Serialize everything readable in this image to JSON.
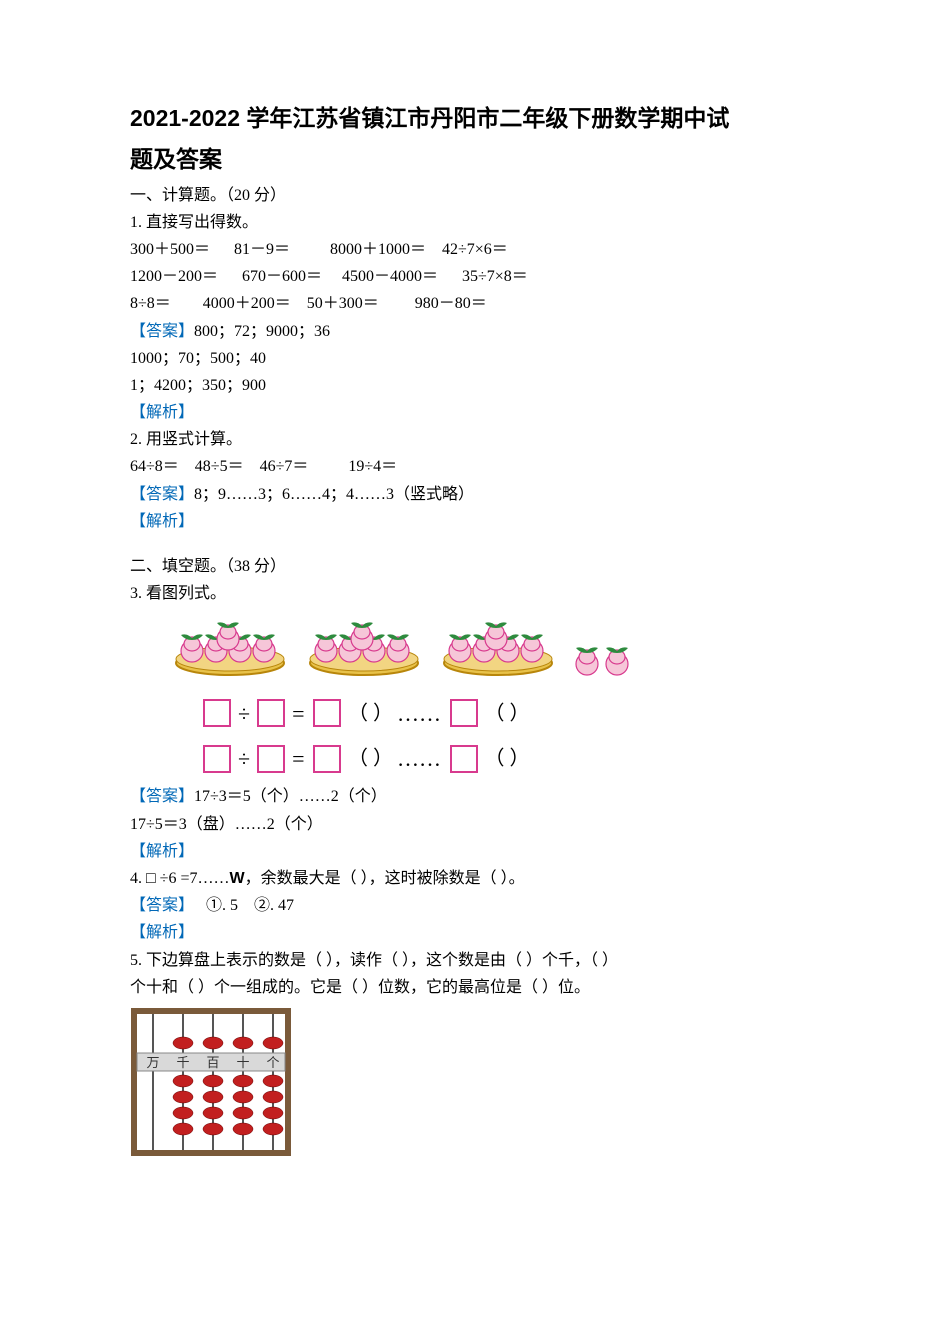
{
  "title_line1": "2021-2022 学年江苏省镇江市丹阳市二年级下册数学期中试",
  "title_line2": "题及答案",
  "section1": {
    "header": "一、计算题。（20 分）",
    "q1": {
      "prompt": "1. 直接写出得数。",
      "row1": "300＋500＝      81－9＝          8000＋1000＝    42÷7×6＝",
      "row2": "1200－200＝      670－600＝     4500－4000＝      35÷7×8＝",
      "row3": "8÷8＝        4000＋200＝    50＋300＝         980－80＝",
      "ans_label": "【答案】",
      "ans_l1": "800；72；9000；36",
      "ans_l2": "1000；70；500；40",
      "ans_l3": "1；4200；350；900",
      "parse": "【解析】"
    },
    "q2": {
      "prompt": "2. 用竖式计算。",
      "row": "64÷8＝    48÷5＝    46÷7＝          19÷4＝",
      "ans_label": "【答案】",
      "ans": "8；9……3；6……4；4……3（竖式略）",
      "parse": "【解析】"
    }
  },
  "section2": {
    "header": "二、填空题。（38 分）",
    "q3": {
      "prompt": "3. 看图列式。",
      "plate_count": 3,
      "peaches_per_plate": 5,
      "loose_peaches": 2,
      "peach_fill": "#f6c6d8",
      "peach_edge": "#d83a8e",
      "leaf_fill": "#2e8b3e",
      "plate_fill": "#e8c24a",
      "plate_rim": "#b8860b",
      "eq_box_color": "#d83a8e",
      "ans_label": "【答案】",
      "ans_l1": "17÷3＝5（个）……2（个）",
      "ans_l2": "17÷5＝3（盘）……2（个）",
      "parse": "【解析】"
    },
    "q4": {
      "prompt_a": "4. □ ÷6 =7……",
      "w": "W",
      "prompt_b": "，余数最大是（      ），这时被除数是（      ）。",
      "ans_label": "【答案】",
      "ans": "   ①. 5    ②. 47",
      "parse": "【解析】"
    },
    "q5": {
      "prompt_l1": "5. 下边算盘上表示的数是（      ），读作（      ），这个数是由（      ）个千，（      ）",
      "prompt_l2": "个十和（      ）个一组成的。它是（      ）位数，它的最高位是（      ）位。",
      "abacus": {
        "labels": [
          "万",
          "千",
          "百",
          "十",
          "个"
        ],
        "upper": [
          0,
          1,
          1,
          1,
          1
        ],
        "lower": [
          0,
          4,
          4,
          4,
          4
        ],
        "frame_color": "#7a5a3a",
        "bar_color": "#cccccc",
        "bead_color": "#c21f1f",
        "rod_color": "#555555",
        "label_bg": "#d9d9d9"
      }
    }
  }
}
